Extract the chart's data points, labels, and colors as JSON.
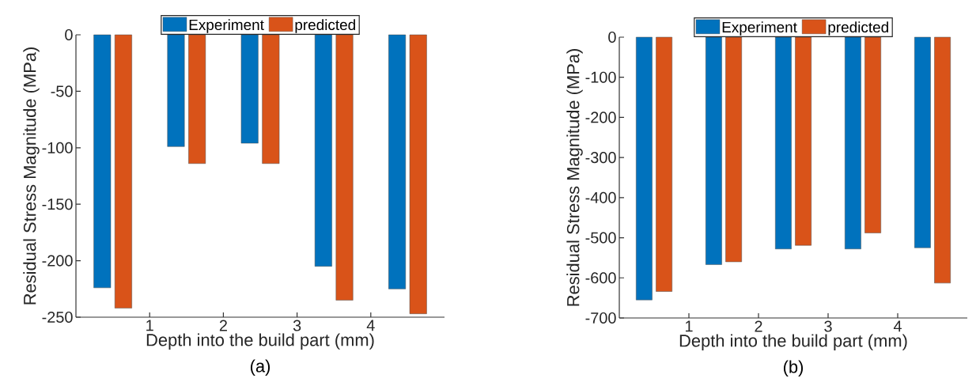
{
  "chart_data": [
    {
      "type": "bar",
      "xlabel": "Depth into the build part (mm)",
      "ylabel": "Residual Stress Magnitude (MPa)",
      "annotations": [
        "(a)"
      ],
      "x": [
        0.5,
        1.5,
        2.5,
        3.5,
        4.5
      ],
      "xlim": [
        0,
        5
      ],
      "xticks": [
        1,
        2,
        3,
        4
      ],
      "ylim": [
        -250,
        0
      ],
      "yticks": [
        -250,
        -200,
        -150,
        -100,
        -50,
        0
      ],
      "legend": "top",
      "series": [
        {
          "name": "Experiment",
          "color": "#0072bd",
          "values": [
            -224,
            -99,
            -96,
            -205,
            -225
          ]
        },
        {
          "name": "predicted",
          "color": "#d95319",
          "values": [
            -242,
            -114,
            -114,
            -235,
            -247
          ]
        }
      ]
    },
    {
      "type": "bar",
      "xlabel": "Depth into the build part (mm)",
      "ylabel": "Residual Stress Magnitude (MPa)",
      "annotations": [
        "(b)"
      ],
      "x": [
        0.5,
        1.5,
        2.5,
        3.5,
        4.5
      ],
      "xlim": [
        0,
        5
      ],
      "xticks": [
        1,
        2,
        3,
        4
      ],
      "ylim": [
        -700,
        0
      ],
      "yticks": [
        -700,
        -600,
        -500,
        -400,
        -300,
        -200,
        -100,
        0
      ],
      "legend": "top",
      "series": [
        {
          "name": "Experiment",
          "color": "#0072bd",
          "values": [
            -655,
            -567,
            -528,
            -528,
            -525
          ]
        },
        {
          "name": "predicted",
          "color": "#d95319",
          "values": [
            -634,
            -560,
            -519,
            -488,
            -613
          ]
        }
      ]
    }
  ]
}
